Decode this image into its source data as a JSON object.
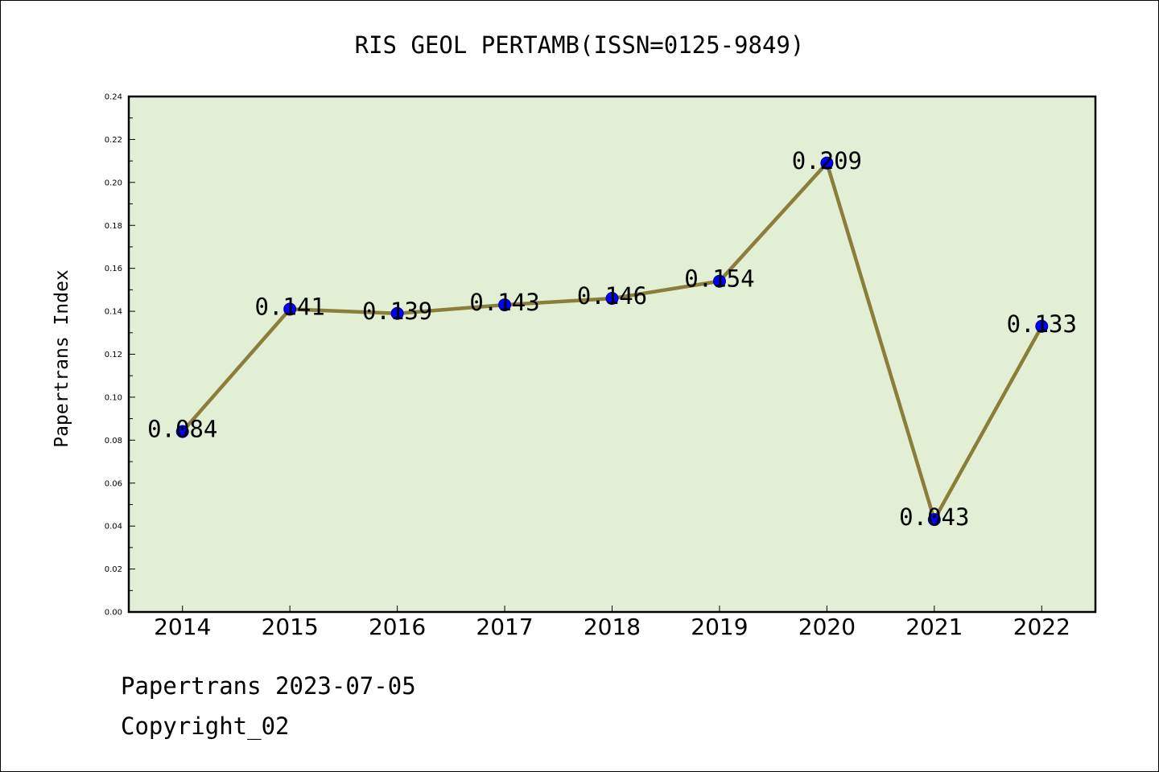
{
  "chart_data": {
    "type": "line",
    "title": "RIS GEOL PERTAMB(ISSN=0125-9849)",
    "ylabel": "Papertrans Index",
    "xlabel": "",
    "categories": [
      "2014",
      "2015",
      "2016",
      "2017",
      "2018",
      "2019",
      "2020",
      "2021",
      "2022"
    ],
    "values": [
      0.084,
      0.141,
      0.139,
      0.143,
      0.146,
      0.154,
      0.209,
      0.043,
      0.133
    ],
    "data_labels": [
      "0.084",
      "0.141",
      "0.139",
      "0.143",
      "0.146",
      "0.154",
      "0.209",
      "0.043",
      "0.133"
    ],
    "ylim": [
      0,
      0.24
    ],
    "yticks": [
      "0.00",
      "0.02",
      "0.04",
      "0.06",
      "0.08",
      "0.10",
      "0.12",
      "0.14",
      "0.16",
      "0.18",
      "0.20",
      "0.22",
      "0.24"
    ],
    "grid": false,
    "colors": {
      "plot_background": "#e2efd4",
      "line": "#8b7d3a",
      "marker": "#0000ff"
    }
  },
  "footer": {
    "date_text": "Papertrans 2023-07-05",
    "copyright": "Copyright_02"
  }
}
